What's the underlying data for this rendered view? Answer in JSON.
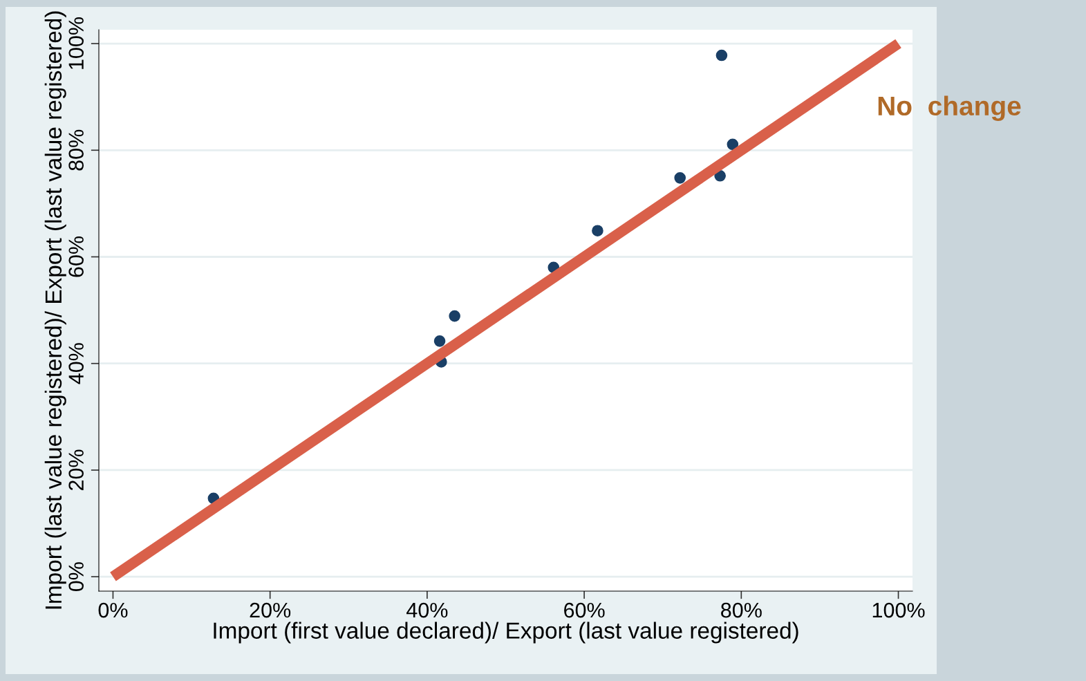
{
  "chart_data": {
    "type": "scatter",
    "xlabel": "Import (first value declared)/ Export (last value registered)",
    "ylabel": "Import (last value registered)/ Export (last value registered)",
    "annotations": [
      "No  change"
    ],
    "series": [
      {
        "type": "scatter",
        "marker": "circle",
        "color": "#1a3f66",
        "x": [
          12.8,
          41.6,
          41.8,
          43.5,
          56.1,
          61.7,
          72.2,
          77.3,
          77.5,
          78.9
        ],
        "values": [
          14.7,
          44.2,
          40.3,
          48.9,
          58,
          64.9,
          74.8,
          75.2,
          97.8,
          81.1
        ]
      },
      {
        "type": "line",
        "color": "#d9604a",
        "x": [
          0,
          100
        ],
        "values": [
          0,
          100
        ]
      }
    ],
    "xlim": [
      -1.8,
      101.8
    ],
    "ylim": [
      -2.7,
      102.6
    ],
    "xticks": [
      {
        "value": 0,
        "label": "0%"
      },
      {
        "value": 20,
        "label": "20%"
      },
      {
        "value": 40,
        "label": "40%"
      },
      {
        "value": 60,
        "label": "60%"
      },
      {
        "value": 80,
        "label": "80%"
      },
      {
        "value": 100,
        "label": "100%"
      }
    ],
    "yticks": [
      {
        "value": 0,
        "label": "0%"
      },
      {
        "value": 20,
        "label": "20%"
      },
      {
        "value": 40,
        "label": "40%"
      },
      {
        "value": 60,
        "label": "60%"
      },
      {
        "value": 80,
        "label": "80%"
      },
      {
        "value": 100,
        "label": "100%"
      }
    ],
    "grid": "y"
  }
}
